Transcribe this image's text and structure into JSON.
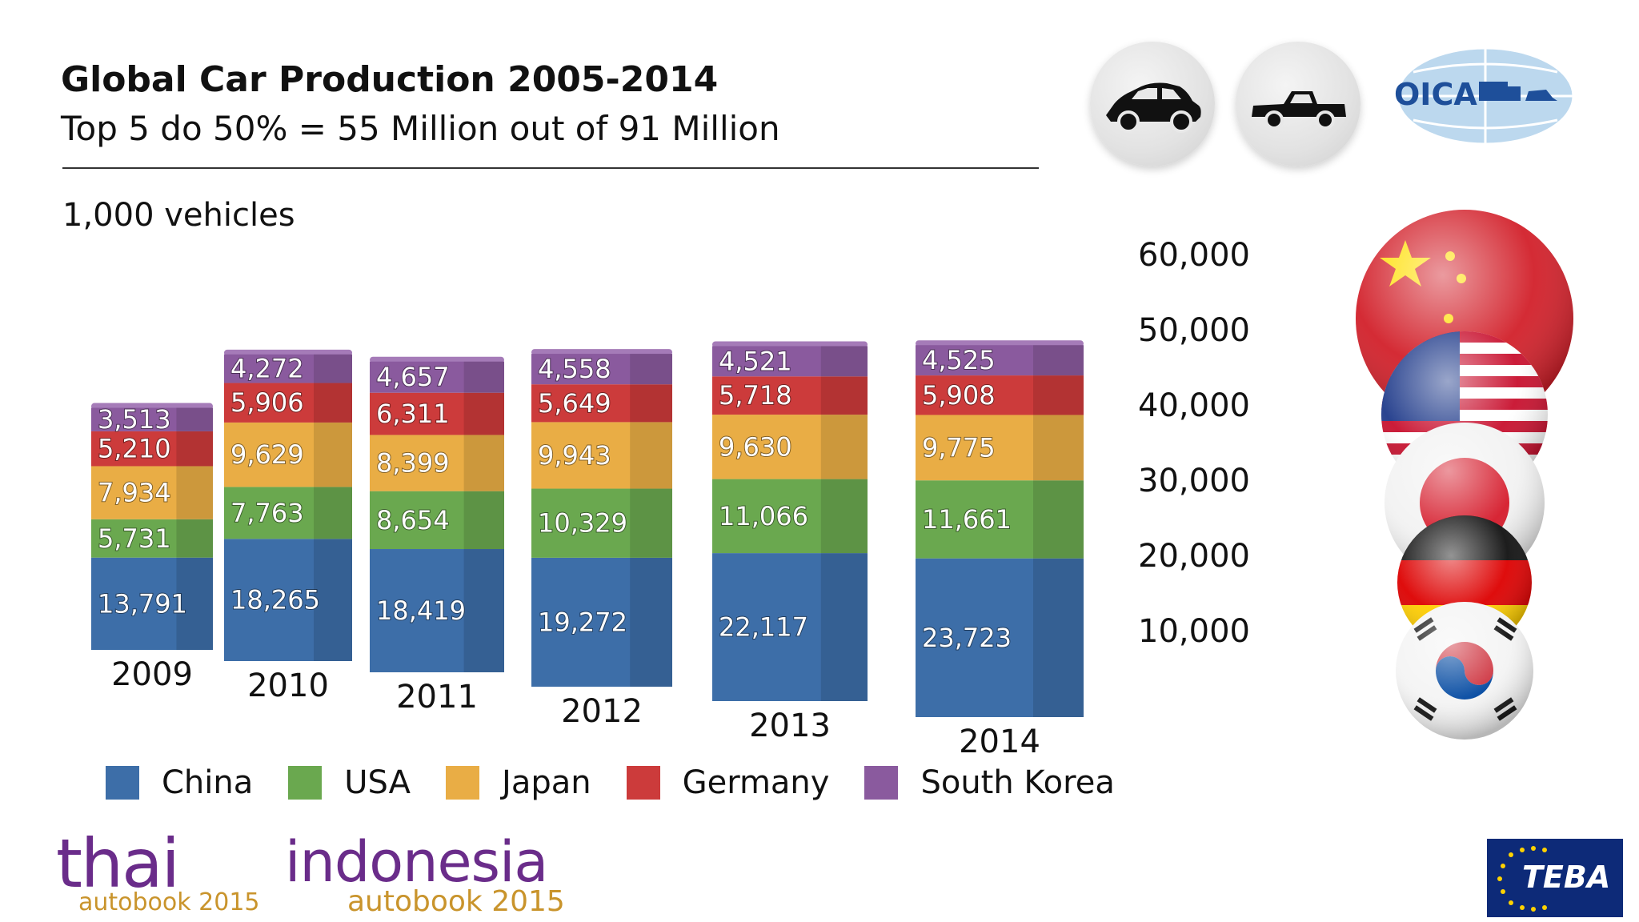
{
  "header": {
    "title": "Global Car Production 2005-2014",
    "subtitle": "Top 5 do 50% = 55 Million out of 91 Million",
    "unit_label": "1,000 vehicles"
  },
  "logos": {
    "oica": "OICA",
    "thai_main": "thai",
    "thai_sub": "autobook 2015",
    "indo_main": "indonesia",
    "indo_sub": "autobook 2015",
    "teba": "TEBA"
  },
  "icons": {
    "car": "car-icon",
    "pickup": "pickup-truck-icon",
    "flags": [
      "china-flag-icon",
      "usa-flag-icon",
      "japan-flag-icon",
      "germany-flag-icon",
      "south-korea-flag-icon"
    ]
  },
  "chart_data": {
    "type": "bar",
    "stacked": true,
    "categories": [
      "2009",
      "2010",
      "2011",
      "2012",
      "2013",
      "2014"
    ],
    "series": [
      {
        "name": "China",
        "color": "#3d6ea8",
        "values": [
          13791,
          18265,
          18419,
          19272,
          22117,
          23723
        ],
        "labels": [
          "13,791",
          "18,265",
          "18,419",
          "19,272",
          "22,117",
          "23,723"
        ]
      },
      {
        "name": "USA",
        "color": "#6aa84f",
        "values": [
          5731,
          7763,
          8654,
          10329,
          11066,
          11661
        ],
        "labels": [
          "5,731",
          "7,763",
          "8,654",
          "10,329",
          "11,066",
          "11,661"
        ]
      },
      {
        "name": "Japan",
        "color": "#e9ad45",
        "values": [
          7934,
          9629,
          8399,
          9943,
          9630,
          9775
        ],
        "labels": [
          "7,934",
          "9,629",
          "8,399",
          "9,943",
          "9,630",
          "9,775"
        ]
      },
      {
        "name": "Germany",
        "color": "#cc3b3b",
        "values": [
          5210,
          5906,
          6311,
          5649,
          5718,
          5908
        ],
        "labels": [
          "5,210",
          "5,906",
          "6,311",
          "5,649",
          "5,718",
          "5,908"
        ]
      },
      {
        "name": "South Korea",
        "color": "#8a5a9e",
        "values": [
          3513,
          4272,
          4657,
          4558,
          4521,
          4525
        ],
        "labels": [
          "3,513",
          "4,272",
          "4,657",
          "4,558",
          "4,521",
          "4,525"
        ]
      }
    ],
    "yticks": [
      10000,
      20000,
      30000,
      40000,
      50000,
      60000
    ],
    "ytick_labels": [
      "10,000",
      "20,000",
      "30,000",
      "40,000",
      "50,000",
      "60,000"
    ],
    "ylim": [
      0,
      60000
    ],
    "legend_position": "bottom",
    "grid": false
  }
}
